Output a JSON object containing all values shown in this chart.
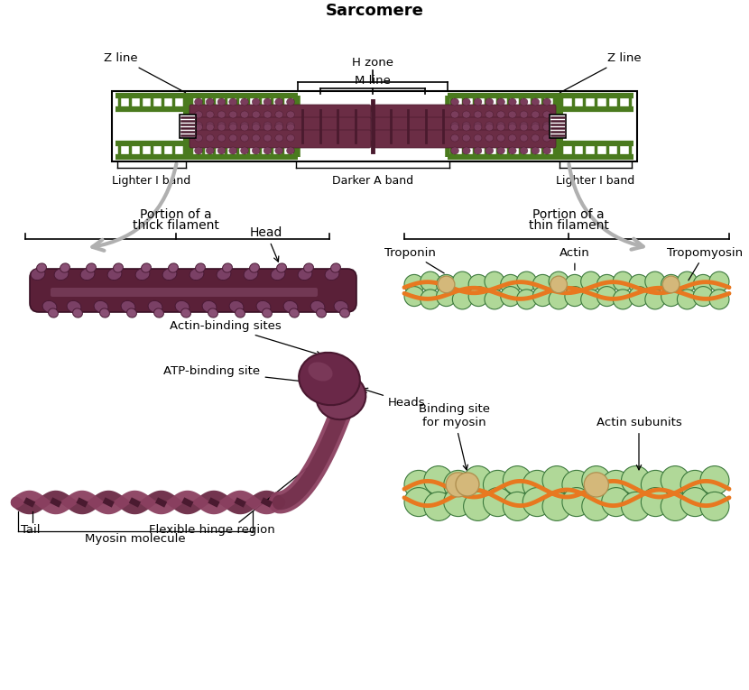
{
  "title": "Sarcomere",
  "bg_color": "#ffffff",
  "dark_green": "#4a7a1e",
  "purple_dark": "#4a1a2e",
  "purple_body": "#6b2d45",
  "purple_mid": "#7a3d5c",
  "purple_light": "#9b6080",
  "orange_color": "#e87820",
  "green_actin": "#8abf7a",
  "green_actin_dark": "#3d7a3d",
  "green_actin_light": "#b0d898",
  "tan_troponin": "#d4b87a",
  "sarcomere": {
    "title": "Sarcomere",
    "h_zone": "H zone",
    "m_line": "M line",
    "z_line": "Z line",
    "i_band_left": "Lighter I band",
    "a_band": "Darker A band",
    "i_band_right": "Lighter I band"
  },
  "labels": {
    "thick_title1": "Portion of a",
    "thick_title2": "thick filament",
    "thin_title1": "Portion of a",
    "thin_title2": "thin filament",
    "head": "Head",
    "troponin": "Troponin",
    "actin": "Actin",
    "tropomyosin": "Tropomyosin",
    "actin_binding": "Actin-binding sites",
    "atp_binding": "ATP-binding site",
    "tail": "Tail",
    "heads": "Heads",
    "flexible_hinge": "Flexible hinge region",
    "myosin_molecule": "Myosin molecule",
    "binding_site1": "Binding site",
    "binding_site2": "for myosin",
    "actin_subunits": "Actin subunits"
  }
}
